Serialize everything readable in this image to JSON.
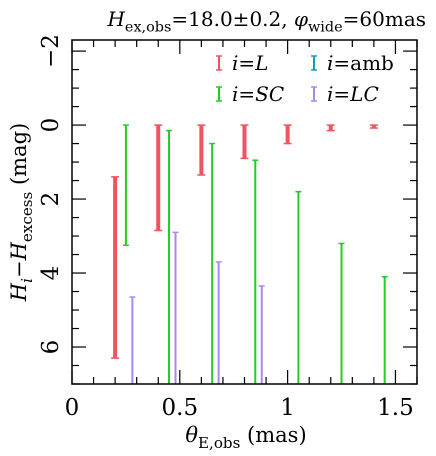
{
  "chart_data": {
    "type": "errorbar",
    "title": {
      "parts": [
        {
          "text": "H",
          "style": "italic"
        },
        {
          "text": "ex,obs",
          "style": "sub"
        },
        {
          "text": "=18.0±0.2,  ",
          "style": "normal"
        },
        {
          "text": "φ",
          "style": "italic"
        },
        {
          "text": "wide",
          "style": "sub"
        },
        {
          "text": "=60mas",
          "style": "normal"
        }
      ]
    },
    "xlabel": {
      "parts": [
        {
          "text": "θ",
          "style": "italic"
        },
        {
          "text": "E,obs",
          "style": "sub"
        },
        {
          "text": " (mas)",
          "style": "normal"
        }
      ]
    },
    "ylabel": {
      "parts": [
        {
          "text": "H",
          "style": "italic"
        },
        {
          "text": "i",
          "style": "sub-italic"
        },
        {
          "text": "−",
          "style": "normal"
        },
        {
          "text": "H",
          "style": "italic"
        },
        {
          "text": "excess",
          "style": "sub"
        },
        {
          "text": "  (mag)",
          "style": "normal"
        }
      ]
    },
    "xlim": [
      0,
      1.6
    ],
    "ylim": [
      7,
      -2.3
    ],
    "y_inverted": true,
    "xticks": [
      {
        "value": 0,
        "label": "0"
      },
      {
        "value": 0.5,
        "label": "0.5"
      },
      {
        "value": 1,
        "label": "1"
      },
      {
        "value": 1.5,
        "label": "1.5"
      }
    ],
    "yticks": [
      {
        "value": -2,
        "label": "−2"
      },
      {
        "value": 0,
        "label": "0"
      },
      {
        "value": 2,
        "label": "2"
      },
      {
        "value": 4,
        "label": "4"
      },
      {
        "value": 6,
        "label": "6"
      }
    ],
    "legend_placement": "top-right",
    "series": [
      {
        "name": "i=L",
        "label_parts": [
          {
            "text": "i",
            "style": "italic"
          },
          {
            "text": "=",
            "style": "normal"
          },
          {
            "text": "L",
            "style": "italic"
          }
        ],
        "color": "#ee5560",
        "width": 4,
        "bars": [
          {
            "x": 0.2,
            "ymin": 1.4,
            "ymax": 6.3
          },
          {
            "x": 0.4,
            "ymin": 0.0,
            "ymax": 2.85
          },
          {
            "x": 0.6,
            "ymin": 0.0,
            "ymax": 1.35
          },
          {
            "x": 0.8,
            "ymin": 0.0,
            "ymax": 0.9
          },
          {
            "x": 1.0,
            "ymin": 0.0,
            "ymax": 0.5
          },
          {
            "x": 1.2,
            "ymin": 0.0,
            "ymax": 0.15
          },
          {
            "x": 1.4,
            "ymin": 0.0,
            "ymax": 0.08
          }
        ]
      },
      {
        "name": "i=SC",
        "label_parts": [
          {
            "text": "i",
            "style": "italic"
          },
          {
            "text": "=",
            "style": "normal"
          },
          {
            "text": "SC",
            "style": "italic"
          }
        ],
        "color": "#22cc22",
        "width": 2,
        "bars": [
          {
            "x": 0.25,
            "ymin": 0.0,
            "ymax": 3.25
          },
          {
            "x": 0.45,
            "ymin": 0.15,
            "ymax": 7.0
          },
          {
            "x": 0.65,
            "ymin": 0.5,
            "ymax": 7.0
          },
          {
            "x": 0.85,
            "ymin": 0.95,
            "ymax": 7.0
          },
          {
            "x": 1.05,
            "ymin": 1.8,
            "ymax": 7.0
          },
          {
            "x": 1.25,
            "ymin": 3.2,
            "ymax": 7.0
          },
          {
            "x": 1.45,
            "ymin": 4.1,
            "ymax": 7.0
          }
        ]
      },
      {
        "name": "i=amb",
        "label_parts": [
          {
            "text": "i",
            "style": "italic"
          },
          {
            "text": "=amb",
            "style": "normal"
          }
        ],
        "color": "#1a9ac0",
        "width": 2,
        "bars": []
      },
      {
        "name": "i=LC",
        "label_parts": [
          {
            "text": "i",
            "style": "italic"
          },
          {
            "text": "=",
            "style": "normal"
          },
          {
            "text": "LC",
            "style": "italic"
          }
        ],
        "color": "#aa88ee",
        "width": 2,
        "bars": [
          {
            "x": 0.28,
            "ymin": 4.65,
            "ymax": 7.0
          },
          {
            "x": 0.48,
            "ymin": 2.9,
            "ymax": 7.0
          },
          {
            "x": 0.68,
            "ymin": 3.7,
            "ymax": 7.0
          },
          {
            "x": 0.88,
            "ymin": 4.35,
            "ymax": 7.0
          }
        ]
      }
    ]
  }
}
